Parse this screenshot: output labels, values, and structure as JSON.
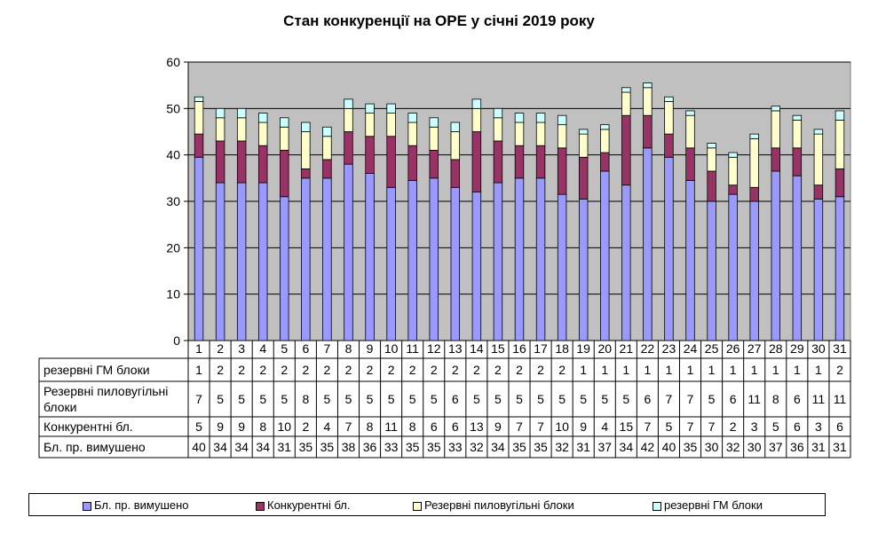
{
  "chart_data": {
    "type": "bar",
    "stacked": true,
    "title": "Стан конкуренції на ОРЕ  у січні 2019 року",
    "categories": [
      "1",
      "2",
      "3",
      "4",
      "5",
      "6",
      "7",
      "8",
      "9",
      "10",
      "11",
      "12",
      "13",
      "14",
      "15",
      "16",
      "17",
      "18",
      "19",
      "20",
      "21",
      "22",
      "23",
      "24",
      "25",
      "26",
      "27",
      "28",
      "29",
      "30",
      "31"
    ],
    "ylim": [
      0,
      60
    ],
    "yticks": [
      0,
      10,
      20,
      30,
      40,
      50,
      60
    ],
    "grid": true,
    "legend_position": "bottom",
    "series": [
      {
        "name": "Бл. пр. вимушено",
        "color": "#9999ff",
        "values": [
          39.5,
          34,
          34,
          34,
          31,
          35,
          35,
          38,
          36,
          33,
          34.5,
          35,
          33,
          32,
          34,
          35,
          35,
          31.5,
          30.5,
          36.5,
          33.5,
          41.5,
          39.5,
          34.5,
          30,
          31.5,
          30,
          36.5,
          35.5,
          30.5,
          31
        ],
        "labels": [
          "40",
          "34",
          "34",
          "34",
          "31",
          "35",
          "35",
          "38",
          "36",
          "33",
          "35",
          "35",
          "33",
          "32",
          "34",
          "35",
          "35",
          "32",
          "31",
          "37",
          "34",
          "42",
          "40",
          "35",
          "30",
          "32",
          "30",
          "37",
          "36",
          "31",
          "31"
        ]
      },
      {
        "name": "Конкурентні бл.",
        "color": "#993366",
        "values": [
          5,
          9,
          9,
          8,
          10,
          2,
          4,
          7,
          8,
          11,
          7.5,
          6,
          6,
          13,
          9,
          7,
          7,
          10,
          9,
          4,
          15,
          7,
          5,
          7,
          6.5,
          2,
          3,
          5,
          6,
          3,
          6
        ],
        "labels": [
          "5",
          "9",
          "9",
          "8",
          "10",
          "2",
          "4",
          "7",
          "8",
          "11",
          "8",
          "6",
          "6",
          "13",
          "9",
          "7",
          "7",
          "10",
          "9",
          "4",
          "15",
          "7",
          "5",
          "7",
          "7",
          "2",
          "3",
          "5",
          "6",
          "3",
          "6"
        ]
      },
      {
        "name": "Резервні пиловугільні блоки",
        "color": "#ffffcc",
        "values": [
          7,
          5,
          5,
          5,
          5,
          8,
          5,
          5,
          5,
          5,
          5,
          5,
          6,
          5,
          5,
          5,
          5,
          5,
          5,
          5,
          5,
          6,
          7,
          7,
          5,
          6,
          10.5,
          8,
          6,
          11,
          10.5
        ],
        "labels": [
          "7",
          "5",
          "5",
          "5",
          "5",
          "8",
          "5",
          "5",
          "5",
          "5",
          "5",
          "5",
          "6",
          "5",
          "5",
          "5",
          "5",
          "5",
          "5",
          "5",
          "5",
          "6",
          "7",
          "7",
          "5",
          "6",
          "11",
          "8",
          "6",
          "11",
          "11"
        ]
      },
      {
        "name": "резервні ГМ блоки",
        "color": "#ccffff",
        "values": [
          1,
          2,
          2,
          2,
          2,
          2,
          2,
          2,
          2,
          2,
          2,
          2,
          2,
          2,
          2,
          2,
          2,
          2,
          1,
          1,
          1,
          1,
          1,
          1,
          1,
          1,
          1,
          1,
          1,
          1,
          2
        ],
        "labels": [
          "1",
          "2",
          "2",
          "2",
          "2",
          "2",
          "2",
          "2",
          "2",
          "2",
          "2",
          "2",
          "2",
          "2",
          "2",
          "2",
          "2",
          "2",
          "1",
          "1",
          "1",
          "1",
          "1",
          "1",
          "1",
          "1",
          "1",
          "1",
          "1",
          "1",
          "2"
        ]
      }
    ],
    "table_rows": [
      {
        "label": "резервні ГМ блоки",
        "series_index": 3
      },
      {
        "label": "Резервні пиловугільні блоки",
        "series_index": 2
      },
      {
        "label": "Конкурентні  бл.",
        "series_index": 1
      },
      {
        "label": "Бл. пр. вимушено",
        "series_index": 0
      }
    ],
    "plot_background": "#c0c0c0"
  }
}
